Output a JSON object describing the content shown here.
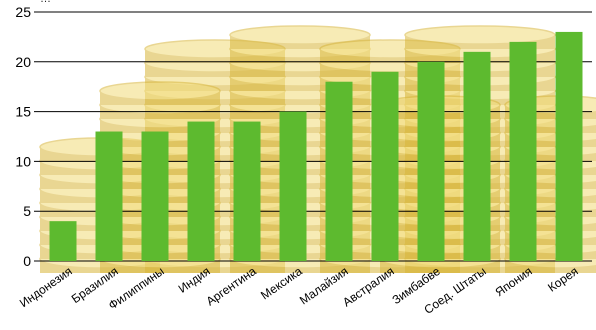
{
  "chart_data": {
    "type": "bar",
    "title_fragment": "…",
    "categories": [
      "Индонезия",
      "Бразилия",
      "Филиппины",
      "Индия",
      "Аргентина",
      "Мексика",
      "Малайзия",
      "Австралия",
      "Зимбабве",
      "Соед. Штаты",
      "Япония",
      "Корея"
    ],
    "values": [
      4,
      13,
      13,
      14,
      14,
      15,
      18,
      19,
      20,
      21,
      22,
      23
    ],
    "ylim": [
      0,
      25
    ],
    "yticks": [
      0,
      5,
      10,
      15,
      20,
      25
    ],
    "grid": true,
    "legend": "none",
    "colors": {
      "bar": "#5dba2f",
      "grid": "#000000",
      "background_coin": "#f2dc7a",
      "background_coin_shade": "#d8b63a"
    },
    "background": "coin-stacks"
  }
}
